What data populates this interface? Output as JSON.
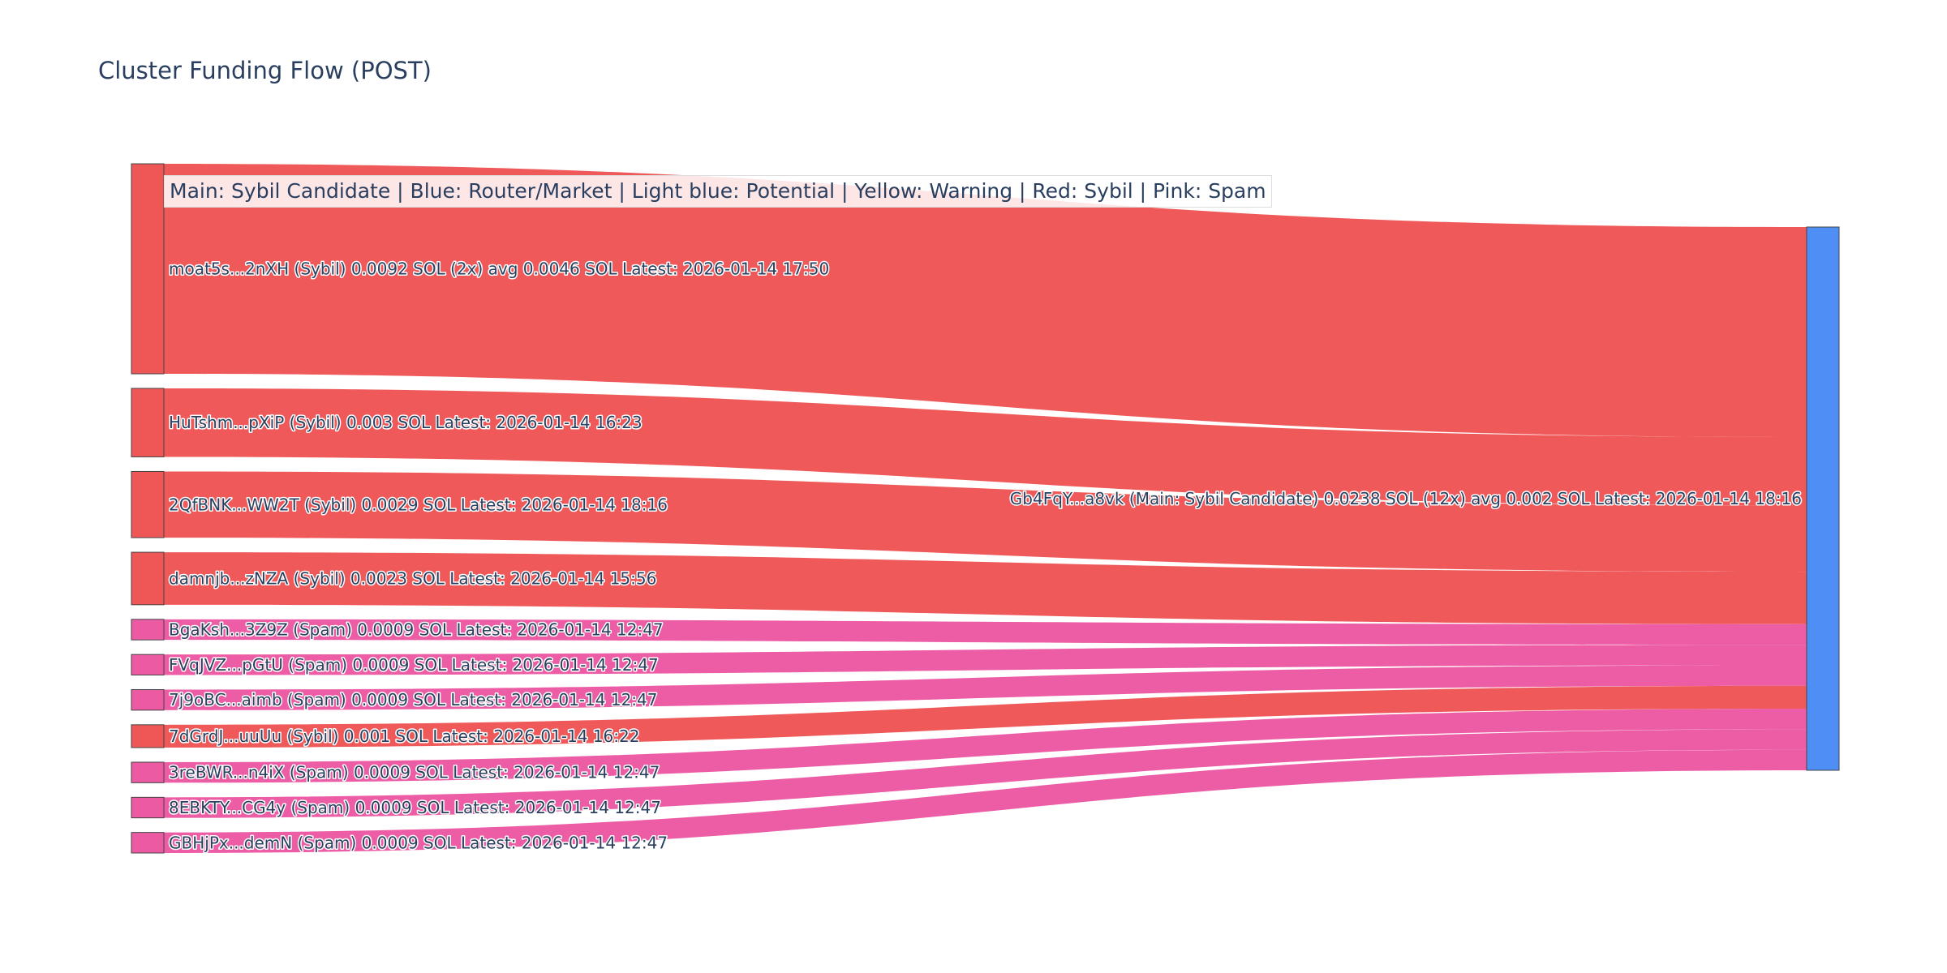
{
  "title": "Cluster Funding Flow (POST)",
  "legend_text": "Main: Sybil Candidate  |  Blue: Router/Market | Light blue: Potential | Yellow: Warning | Red: Sybil | Pink: Spam",
  "colors": {
    "sybil": "#ef5656",
    "spam": "#ec5aa4",
    "main": "#4f8ff5",
    "node_border": "#444444"
  },
  "chart_data": {
    "type": "sankey",
    "target": {
      "label": "Gb4FqY...a8vk (Main: Sybil Candidate) 0.0238 SOL (12x) avg 0.002 SOL Latest: 2026-01-14 18:16",
      "category": "main",
      "total_sol": 0.0238
    },
    "sources": [
      {
        "id": "moat5s",
        "label": "moat5s...2nXH (Sybil) 0.0092 SOL (2x) avg 0.0046 SOL Latest: 2026-01-14 17:50",
        "category": "sybil",
        "value": 0.0092
      },
      {
        "id": "HuTshm",
        "label": "HuTshm...pXiP (Sybil) 0.003 SOL Latest: 2026-01-14 16:23",
        "category": "sybil",
        "value": 0.003
      },
      {
        "id": "2QfBNK",
        "label": "2QfBNK...WW2T (Sybil) 0.0029 SOL Latest: 2026-01-14 18:16",
        "category": "sybil",
        "value": 0.0029
      },
      {
        "id": "damnjb",
        "label": "damnjb...zNZA (Sybil) 0.0023 SOL Latest: 2026-01-14 15:56",
        "category": "sybil",
        "value": 0.0023
      },
      {
        "id": "BgaKsh",
        "label": "BgaKsh...3Z9Z (Spam) 0.0009 SOL Latest: 2026-01-14 12:47",
        "category": "spam",
        "value": 0.0009
      },
      {
        "id": "FVqJVZ",
        "label": "FVqJVZ...pGtU (Spam) 0.0009 SOL Latest: 2026-01-14 12:47",
        "category": "spam",
        "value": 0.0009
      },
      {
        "id": "7j9oBC",
        "label": "7j9oBC...aimb (Spam) 0.0009 SOL Latest: 2026-01-14 12:47",
        "category": "spam",
        "value": 0.0009
      },
      {
        "id": "7dGrdJ",
        "label": "7dGrdJ...uuUu (Sybil) 0.001 SOL Latest: 2026-01-14 16:22",
        "category": "sybil",
        "value": 0.001
      },
      {
        "id": "3reBWR",
        "label": "3reBWR...n4iX (Spam) 0.0009 SOL Latest: 2026-01-14 12:47",
        "category": "spam",
        "value": 0.0009
      },
      {
        "id": "8EBKTY",
        "label": "8EBKTY...CG4y (Spam) 0.0009 SOL Latest: 2026-01-14 12:47",
        "category": "spam",
        "value": 0.0009
      },
      {
        "id": "GBHjPx",
        "label": "GBHjPx...demN (Spam) 0.0009 SOL Latest: 2026-01-14 12:47",
        "category": "spam",
        "value": 0.0009
      }
    ],
    "target_link_order": [
      "moat5s",
      "HuTshm",
      "2QfBNK",
      "damnjb",
      "BgaKsh",
      "FVqJVZ",
      "7j9oBC",
      "7dGrdJ",
      "3reBWR",
      "8EBKTY",
      "GBHjPx"
    ]
  }
}
